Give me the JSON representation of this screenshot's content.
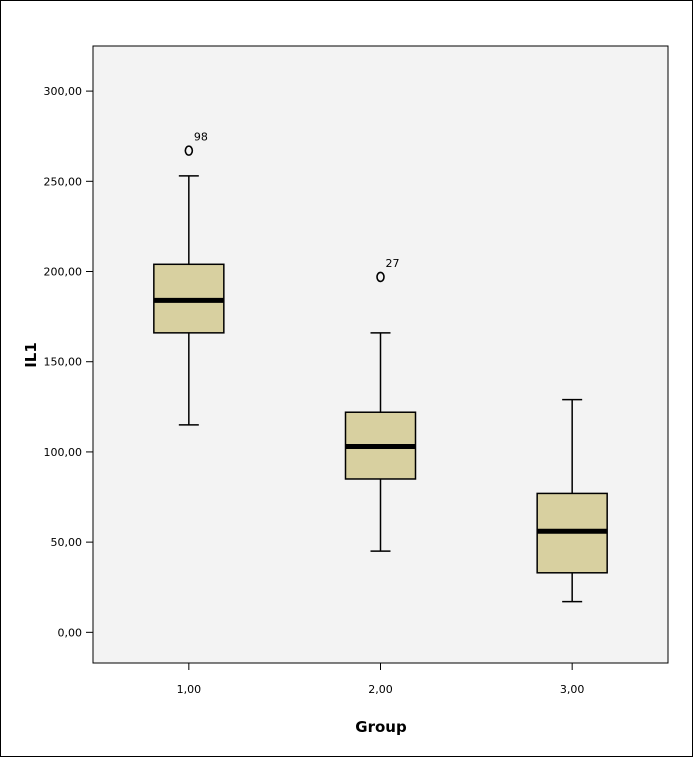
{
  "chart_data": {
    "type": "boxplot",
    "xlabel": "Group",
    "ylabel": "IL1",
    "categories": [
      "1,00",
      "2,00",
      "3,00"
    ],
    "ylim": [
      -17,
      325
    ],
    "yticks": [
      0,
      50,
      100,
      150,
      200,
      250,
      300
    ],
    "ytick_labels": [
      "0,00",
      "50,00",
      "100,00",
      "150,00",
      "200,00",
      "250,00",
      "300,00"
    ],
    "grid": false,
    "box_color": "#d8d0a0",
    "plot_background": "#f3f3f3",
    "boxes": [
      {
        "category": "1,00",
        "whisker_low": 115,
        "q1": 166,
        "median": 184,
        "q3": 204,
        "whisker_high": 253,
        "outliers": [
          {
            "value": 267,
            "label": "98"
          }
        ]
      },
      {
        "category": "2,00",
        "whisker_low": 45,
        "q1": 85,
        "median": 103,
        "q3": 122,
        "whisker_high": 166,
        "outliers": [
          {
            "value": 197,
            "label": "27"
          }
        ]
      },
      {
        "category": "3,00",
        "whisker_low": 17,
        "q1": 33,
        "median": 56,
        "q3": 77,
        "whisker_high": 129,
        "outliers": []
      }
    ]
  }
}
